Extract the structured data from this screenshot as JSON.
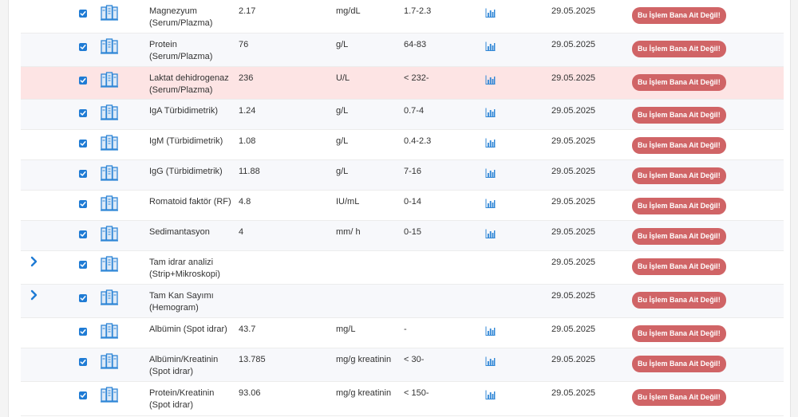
{
  "columns_note": "",
  "button_label": "Bu İşlem Bana Ait Değil!",
  "rows": [
    {
      "name": "Magnezyum (Serum/Plazma)",
      "result": "2.17",
      "unit": "mg/dL",
      "range": "1.7-2.3",
      "chart": true,
      "date": "29.05.2025",
      "expandable": false,
      "style": "plain"
    },
    {
      "name": "Protein (Serum/Plazma)",
      "result": "76",
      "unit": "g/L",
      "range": "64-83",
      "chart": true,
      "date": "29.05.2025",
      "expandable": false,
      "style": "alt"
    },
    {
      "name": "Laktat dehidrogenaz (Serum/Plazma)",
      "result": "236",
      "unit": "U/L",
      "range": "< 232-",
      "chart": true,
      "date": "29.05.2025",
      "expandable": false,
      "style": "highlight"
    },
    {
      "name": "IgA Türbidimetrik)",
      "result": "1.24",
      "unit": "g/L",
      "range": "0.7-4",
      "chart": true,
      "date": "29.05.2025",
      "expandable": false,
      "style": "alt"
    },
    {
      "name": "IgM (Türbidimetrik)",
      "result": "1.08",
      "unit": "g/L",
      "range": "0.4-2.3",
      "chart": true,
      "date": "29.05.2025",
      "expandable": false,
      "style": "plain"
    },
    {
      "name": "IgG (Türbidimetrik)",
      "result": "11.88",
      "unit": "g/L",
      "range": "7-16",
      "chart": true,
      "date": "29.05.2025",
      "expandable": false,
      "style": "alt"
    },
    {
      "name": "Romatoid faktör (RF)",
      "result": "4.8",
      "unit": "IU/mL",
      "range": "0-14",
      "chart": true,
      "date": "29.05.2025",
      "expandable": false,
      "style": "plain"
    },
    {
      "name": "Sedimantasyon",
      "result": "4",
      "unit": "mm/ h",
      "range": "0-15",
      "chart": true,
      "date": "29.05.2025",
      "expandable": false,
      "style": "alt"
    },
    {
      "name": "Tam idrar analizi (Strip+Mikroskopi)",
      "result": "",
      "unit": "",
      "range": "",
      "chart": false,
      "date": "29.05.2025",
      "expandable": true,
      "style": "plain"
    },
    {
      "name": "Tam Kan Sayımı (Hemogram)",
      "result": "",
      "unit": "",
      "range": "",
      "chart": false,
      "date": "29.05.2025",
      "expandable": true,
      "style": "alt"
    },
    {
      "name": "Albümin (Spot idrar)",
      "result": "43.7",
      "unit": "mg/L",
      "range": "-",
      "chart": true,
      "date": "29.05.2025",
      "expandable": false,
      "style": "plain"
    },
    {
      "name": "Albümin/Kreatinin (Spot idrar)",
      "result": "13.785",
      "unit": "mg/g kreatinin",
      "range": "< 30-",
      "chart": true,
      "date": "29.05.2025",
      "expandable": false,
      "style": "alt"
    },
    {
      "name": "Protein/Kreatinin (Spot idrar)",
      "result": "93.06",
      "unit": "mg/g kreatinin",
      "range": "< 150-",
      "chart": true,
      "date": "29.05.2025",
      "expandable": false,
      "style": "plain"
    }
  ],
  "colors": {
    "accent": "#1f7bd4",
    "button": "#d06466",
    "highlight_row": "#fde4e4",
    "alt_row": "#f7f8fb"
  },
  "icons": {
    "expand": "chevron-right-icon",
    "checkbox": "checkbox-checked-icon",
    "document": "document-stack-icon",
    "chart": "bar-chart-icon"
  }
}
